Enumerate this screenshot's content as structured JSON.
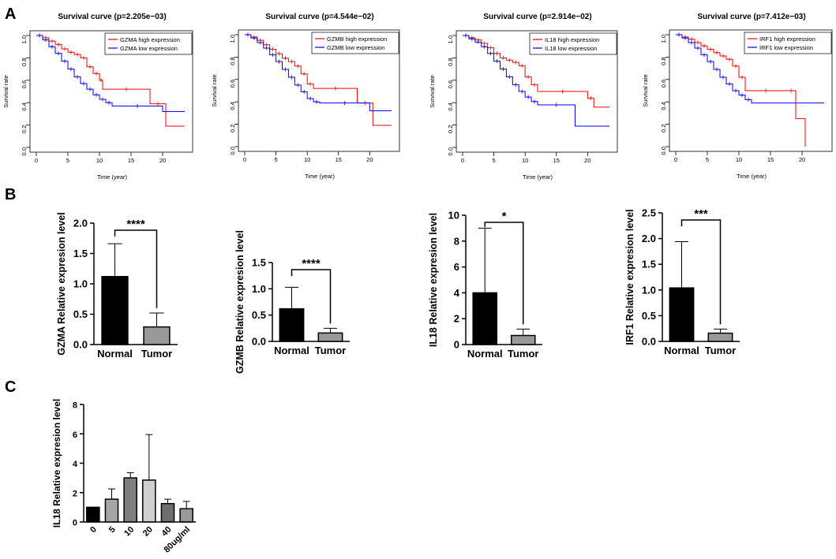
{
  "panel_labels": {
    "a": "A",
    "b": "B",
    "c": "C"
  },
  "colors": {
    "high": "#ff0000",
    "low": "#0000ff",
    "black": "#000000",
    "normal_bar": "#000000",
    "tumor_bar": "#999999"
  },
  "chart_data": [
    {
      "panel": "A",
      "type": "line",
      "title": "Survival curve (p=2.205e−03)",
      "xlabel": "Time (year)",
      "ylabel": "Survival rate",
      "xlim": [
        0,
        24
      ],
      "ylim": [
        0,
        1.0
      ],
      "xticks": [
        "0",
        "5",
        "10",
        "15",
        "20"
      ],
      "yticks": [
        "0.0",
        "0.2",
        "0.4",
        "0.6",
        "0.8",
        "1.0"
      ],
      "legend_position": "top-right",
      "series": [
        {
          "name": "GZMA high expression",
          "color": "#ff0000",
          "x": [
            0,
            1,
            2,
            3,
            4,
            5,
            6,
            7,
            8,
            9,
            10,
            10.5,
            18,
            20.5,
            23.5
          ],
          "y": [
            1.0,
            0.98,
            0.95,
            0.92,
            0.88,
            0.85,
            0.83,
            0.8,
            0.72,
            0.66,
            0.6,
            0.52,
            0.39,
            0.19,
            0.19
          ]
        },
        {
          "name": "GZMA low expression",
          "color": "#0000ff",
          "x": [
            0,
            1,
            2,
            3,
            4,
            5,
            6,
            7,
            8,
            9,
            10,
            11,
            12,
            20,
            23.5
          ],
          "y": [
            1.0,
            0.96,
            0.9,
            0.84,
            0.77,
            0.7,
            0.63,
            0.57,
            0.52,
            0.47,
            0.43,
            0.4,
            0.37,
            0.32,
            0.32
          ]
        }
      ]
    },
    {
      "panel": "A",
      "type": "line",
      "title": "Survival curve (p=4.544e−02)",
      "xlabel": "Time (year)",
      "ylabel": "Survival rate",
      "xlim": [
        0,
        24
      ],
      "ylim": [
        0,
        1.0
      ],
      "xticks": [
        "0",
        "5",
        "10",
        "15",
        "20"
      ],
      "yticks": [
        "0.0",
        "0.2",
        "0.4",
        "0.6",
        "0.8",
        "1.0"
      ],
      "legend_position": "top-right",
      "series": [
        {
          "name": "GZMB high expression",
          "color": "#ff0000",
          "x": [
            0,
            1,
            2,
            3,
            4,
            5,
            6,
            7,
            8,
            9,
            10,
            11,
            18,
            20.5,
            23.5
          ],
          "y": [
            1.0,
            0.98,
            0.95,
            0.91,
            0.87,
            0.83,
            0.79,
            0.76,
            0.72,
            0.65,
            0.56,
            0.52,
            0.39,
            0.19,
            0.19
          ]
        },
        {
          "name": "GZMB low expression",
          "color": "#0000ff",
          "x": [
            0,
            1,
            2,
            3,
            4,
            5,
            6,
            7,
            8,
            9,
            10,
            11,
            12,
            20,
            23.5
          ],
          "y": [
            1.0,
            0.97,
            0.93,
            0.88,
            0.82,
            0.76,
            0.69,
            0.62,
            0.55,
            0.49,
            0.43,
            0.4,
            0.39,
            0.32,
            0.32
          ]
        }
      ]
    },
    {
      "panel": "A",
      "type": "line",
      "title": "Survival curve (p=2.914e−02)",
      "xlabel": "Time (year)",
      "ylabel": "Survival rate",
      "xlim": [
        0,
        24
      ],
      "ylim": [
        0,
        1.0
      ],
      "xticks": [
        "0",
        "5",
        "10",
        "15",
        "20"
      ],
      "yticks": [
        "0.0",
        "0.2",
        "0.4",
        "0.6",
        "0.8",
        "1.0"
      ],
      "legend_position": "top-right",
      "series": [
        {
          "name": "IL18 high expression",
          "color": "#ff0000",
          "x": [
            0,
            1,
            2,
            3,
            4,
            5,
            6,
            7,
            8,
            9,
            10,
            11,
            12,
            20,
            21,
            23.5
          ],
          "y": [
            1.0,
            0.98,
            0.96,
            0.93,
            0.89,
            0.84,
            0.8,
            0.78,
            0.76,
            0.73,
            0.63,
            0.56,
            0.5,
            0.44,
            0.36,
            0.36
          ]
        },
        {
          "name": "IL18 low expression",
          "color": "#0000ff",
          "x": [
            0,
            1,
            2,
            3,
            4,
            5,
            6,
            7,
            8,
            9,
            10,
            11,
            12,
            18,
            23.5
          ],
          "y": [
            1.0,
            0.97,
            0.94,
            0.9,
            0.84,
            0.77,
            0.7,
            0.63,
            0.56,
            0.5,
            0.45,
            0.41,
            0.38,
            0.19,
            0.19
          ]
        }
      ]
    },
    {
      "panel": "A",
      "type": "line",
      "title": "Survival curve (p=7.412e−03)",
      "xlabel": "Time (year)",
      "ylabel": "Survival rate",
      "xlim": [
        0,
        24
      ],
      "ylim": [
        0,
        1.0
      ],
      "xticks": [
        "0",
        "5",
        "10",
        "15",
        "20"
      ],
      "yticks": [
        "0.0",
        "0.2",
        "0.4",
        "0.6",
        "0.8",
        "1.0"
      ],
      "legend_position": "top-right",
      "series": [
        {
          "name": "IRF1 high expression",
          "color": "#ff0000",
          "x": [
            0,
            1,
            2,
            3,
            4,
            5,
            6,
            7,
            8,
            9,
            10,
            11,
            17.5,
            19,
            20.5
          ],
          "y": [
            1.0,
            0.98,
            0.96,
            0.93,
            0.9,
            0.87,
            0.84,
            0.81,
            0.78,
            0.72,
            0.62,
            0.5,
            0.5,
            0.25,
            0.0
          ]
        },
        {
          "name": "IRF1 low expression",
          "color": "#0000ff",
          "x": [
            0,
            1,
            2,
            3,
            4,
            5,
            6,
            7,
            8,
            9,
            10,
            11,
            12,
            23.5
          ],
          "y": [
            1.0,
            0.97,
            0.93,
            0.88,
            0.82,
            0.76,
            0.69,
            0.62,
            0.56,
            0.5,
            0.46,
            0.42,
            0.39,
            0.39
          ]
        }
      ]
    },
    {
      "panel": "B",
      "type": "bar",
      "categories": [
        "Normal",
        "Tumor"
      ],
      "values": [
        1.12,
        0.29
      ],
      "errors": [
        0.54,
        0.23
      ],
      "ylabel": "GZMA Relative expresion level",
      "ylim": [
        0,
        2.0
      ],
      "yticks": [
        "0.0",
        "0.5",
        "1.0",
        "1.5",
        "2.0"
      ],
      "significance": "****"
    },
    {
      "panel": "B",
      "type": "bar",
      "categories": [
        "Normal",
        "Tumor"
      ],
      "values": [
        0.62,
        0.16
      ],
      "errors": [
        0.41,
        0.09
      ],
      "ylabel": "GZMB Relative expresion level",
      "ylim": [
        0,
        1.5
      ],
      "yticks": [
        "0.0",
        "0.5",
        "1.0",
        "1.5"
      ],
      "significance": "****"
    },
    {
      "panel": "B",
      "type": "bar",
      "categories": [
        "Normal",
        "Tumor"
      ],
      "values": [
        4.0,
        0.7
      ],
      "errors": [
        5.0,
        0.5
      ],
      "ylabel": "IL18 Relative expresion level",
      "ylim": [
        0,
        10
      ],
      "yticks": [
        "0",
        "2",
        "4",
        "6",
        "8",
        "10"
      ],
      "significance": "*"
    },
    {
      "panel": "B",
      "type": "bar",
      "categories": [
        "Normal",
        "Tumor"
      ],
      "values": [
        1.04,
        0.16
      ],
      "errors": [
        0.9,
        0.08
      ],
      "ylabel": "IRF1 Relative expresion level",
      "ylim": [
        0,
        2.5
      ],
      "yticks": [
        "0.0",
        "0.5",
        "1.0",
        "1.5",
        "2.0",
        "2.5"
      ],
      "significance": "***"
    },
    {
      "panel": "C",
      "type": "bar",
      "categories": [
        "0",
        "5",
        "10",
        "20",
        "40",
        "80ug/ml"
      ],
      "values": [
        1.0,
        1.55,
        3.0,
        2.85,
        1.25,
        0.9
      ],
      "errors": [
        0.0,
        0.7,
        0.35,
        3.1,
        0.3,
        0.5
      ],
      "colors": [
        "#000000",
        "#a6a6a6",
        "#7f7f7f",
        "#d0d0d0",
        "#6e6e6e",
        "#999999"
      ],
      "ylabel": "IL18 Relative expresion level",
      "ylim": [
        0,
        8
      ],
      "yticks": [
        "0",
        "2",
        "4",
        "6",
        "8"
      ]
    }
  ]
}
